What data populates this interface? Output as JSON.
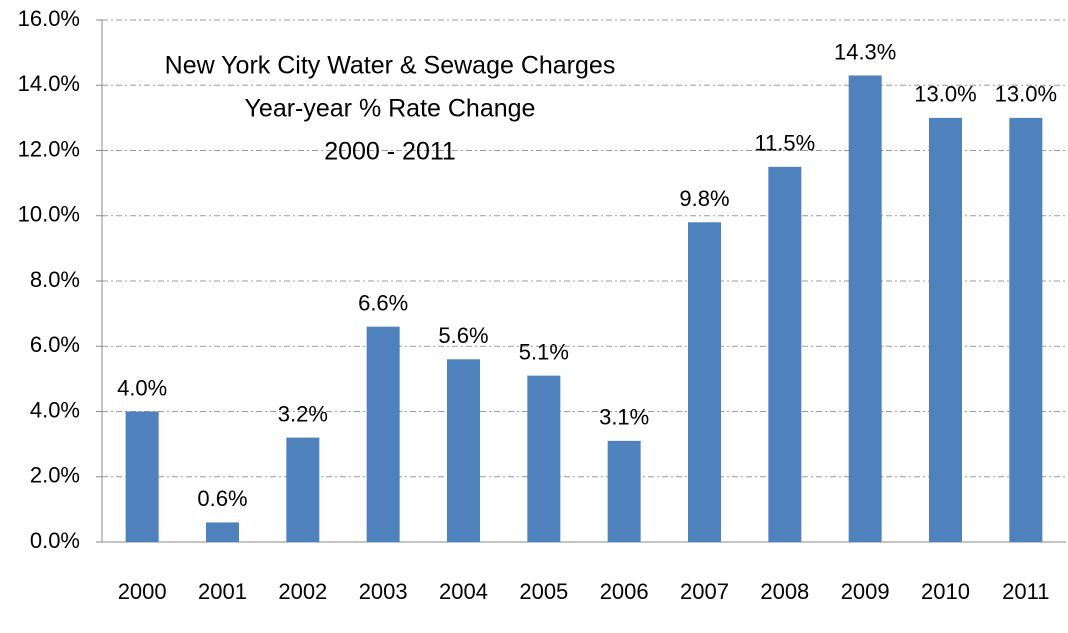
{
  "chart_data": {
    "type": "bar",
    "title": [
      "New York City Water & Sewage Charges",
      "Year-year % Rate Change",
      "2000 - 2011"
    ],
    "categories": [
      "2000",
      "2001",
      "2002",
      "2003",
      "2004",
      "2005",
      "2006",
      "2007",
      "2008",
      "2009",
      "2010",
      "2011"
    ],
    "values": [
      4.0,
      0.6,
      3.2,
      6.6,
      5.6,
      5.1,
      3.1,
      9.8,
      11.5,
      14.3,
      13.0,
      13.0
    ],
    "value_labels": [
      "4.0%",
      "0.6%",
      "3.2%",
      "6.6%",
      "5.6%",
      "5.1%",
      "3.1%",
      "9.8%",
      "11.5%",
      "14.3%",
      "13.0%",
      "13.0%"
    ],
    "color": "#4f81bd",
    "ylim": [
      0,
      16
    ],
    "yticks": [
      {
        "value": 0,
        "label": "0.0%"
      },
      {
        "value": 2,
        "label": "2.0%"
      },
      {
        "value": 4,
        "label": "4.0%"
      },
      {
        "value": 6,
        "label": "6.0%"
      },
      {
        "value": 8,
        "label": "8.0%"
      },
      {
        "value": 10,
        "label": "10.0%"
      },
      {
        "value": 12,
        "label": "12.0%"
      },
      {
        "value": 14,
        "label": "14.0%"
      },
      {
        "value": 16,
        "label": "16.0%"
      }
    ],
    "grid": true
  }
}
